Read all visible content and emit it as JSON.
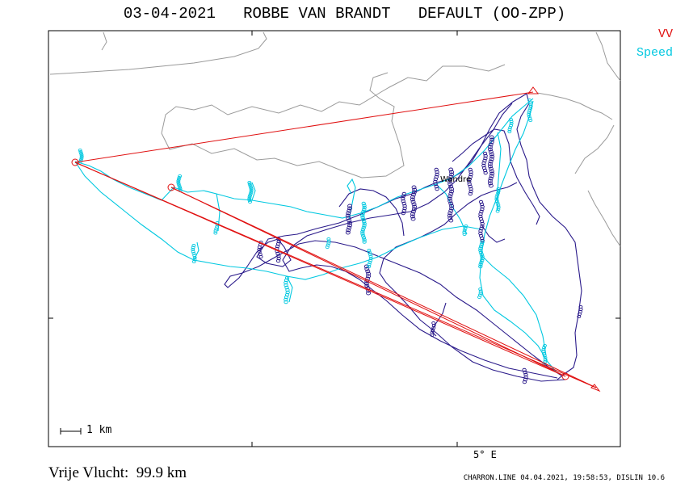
{
  "header": {
    "title": "03-04-2021   ROBBE VAN BRANDT   DEFAULT (OO-ZPP)"
  },
  "legend": {
    "vv_label": "VV",
    "speed_label": "Speed",
    "vv_color": "#e01010",
    "speed_color": "#00c8e0",
    "track_color": "#2a1a8a"
  },
  "map": {
    "scale_label": "1 km",
    "axis_label": "5° E",
    "waypoint_label": "Wandre"
  },
  "footer": {
    "left": "Vrije Vlucht:  99.9 km",
    "right": "CHARRON.LINE 04.04.2021, 19:58:53, DISLIN 10.6"
  }
}
